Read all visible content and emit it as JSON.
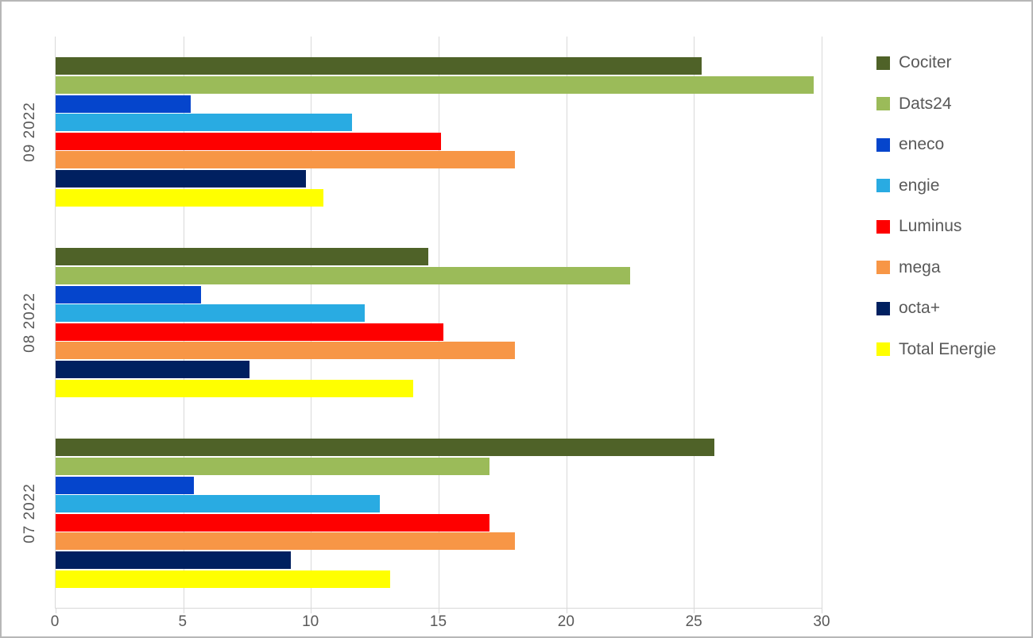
{
  "chart_data": {
    "type": "bar",
    "orientation": "horizontal",
    "title": "",
    "xlabel": "",
    "ylabel": "",
    "categories": [
      "09 2022",
      "08 2022",
      "07 2022"
    ],
    "series": [
      {
        "name": "Cociter",
        "color": "#4f6228",
        "values": [
          25.3,
          14.6,
          25.8
        ]
      },
      {
        "name": "Dats24",
        "color": "#9bbb59",
        "values": [
          29.7,
          22.5,
          17.0
        ]
      },
      {
        "name": "eneco",
        "color": "#0545cc",
        "values": [
          5.3,
          5.7,
          5.4
        ]
      },
      {
        "name": "engie",
        "color": "#29abe2",
        "values": [
          11.6,
          12.1,
          12.7
        ]
      },
      {
        "name": "Luminus",
        "color": "#fe0000",
        "values": [
          15.1,
          15.2,
          17.0
        ]
      },
      {
        "name": "mega",
        "color": "#f79646",
        "values": [
          18.0,
          18.0,
          18.0
        ]
      },
      {
        "name": "octa+",
        "color": "#002060",
        "values": [
          9.8,
          7.6,
          9.2
        ]
      },
      {
        "name": "Total Energie",
        "color": "#ffff00",
        "values": [
          10.5,
          14.0,
          13.1
        ]
      }
    ],
    "xlim": [
      0,
      30
    ],
    "xticks": [
      0,
      5,
      10,
      15,
      20,
      25,
      30
    ],
    "grid": true,
    "legend_position": "right"
  },
  "colors": {
    "background": "#ffffff",
    "border": "#b7b7b7",
    "gridline": "#d9d9d9",
    "axis": "#d9d9d9",
    "text": "#595959"
  }
}
